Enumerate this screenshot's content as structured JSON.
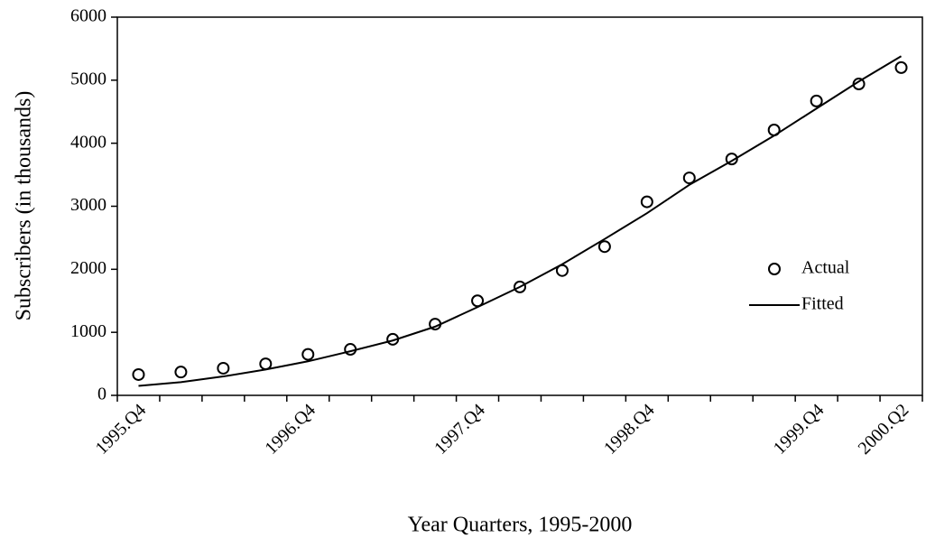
{
  "chart_data": {
    "type": "line",
    "x_label": "Year Quarters, 1995-2000",
    "y_label": "Subscribers (in thousands)",
    "categories": [
      "1995.Q4",
      null,
      null,
      null,
      "1996.Q4",
      null,
      null,
      null,
      "1997.Q4",
      null,
      null,
      null,
      "1998.Q4",
      null,
      null,
      null,
      "1999.Q4",
      null,
      "2000.Q2"
    ],
    "series": [
      {
        "name": "Actual",
        "color": "#000000",
        "marker": "circle",
        "values": [
          330,
          370,
          430,
          500,
          650,
          730,
          890,
          1130,
          1500,
          1720,
          1980,
          2360,
          3070,
          3450,
          3750,
          4210,
          4670,
          4940,
          5200
        ]
      },
      {
        "name": "Fitted",
        "color": "#000000",
        "marker": "line",
        "values": [
          150,
          210,
          300,
          410,
          540,
          700,
          870,
          1090,
          1400,
          1720,
          2080,
          2480,
          2890,
          3340,
          3720,
          4120,
          4550,
          4980,
          5380
        ]
      }
    ],
    "ylim": [
      0,
      6000
    ],
    "yticks": [
      0,
      1000,
      2000,
      3000,
      4000,
      5000,
      6000
    ],
    "grid": false,
    "legend": "right"
  }
}
